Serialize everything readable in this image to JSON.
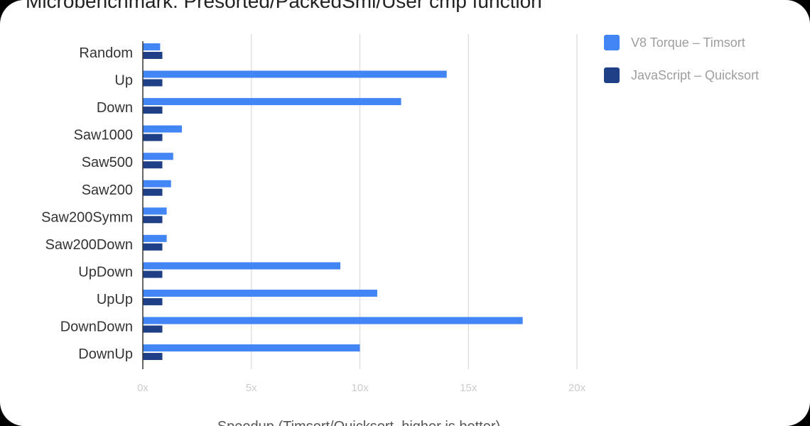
{
  "chart_data": {
    "type": "bar",
    "orientation": "horizontal",
    "title": "Microbenchmark: Presorted/PackedSmi/User cmp function",
    "xlabel": "Speedup (Timsort/Quicksort, higher is better)",
    "ylabel": "",
    "xlim": [
      0,
      20
    ],
    "xticks": [
      0,
      5,
      10,
      15,
      20
    ],
    "xtick_labels": [
      "0x",
      "5x",
      "10x",
      "15x",
      "20x"
    ],
    "grid": true,
    "legend_position": "right",
    "categories": [
      "Random",
      "Up",
      "Down",
      "Saw1000",
      "Saw500",
      "Saw200",
      "Saw200Symm",
      "Saw200Down",
      "UpDown",
      "UpUp",
      "DownDown",
      "DownUp"
    ],
    "series": [
      {
        "name": "V8 Torque – Timsort",
        "color": "#4285f4",
        "values": [
          0.8,
          14.0,
          11.9,
          1.8,
          1.4,
          1.3,
          1.1,
          1.1,
          9.1,
          10.8,
          17.5,
          10.0
        ]
      },
      {
        "name": "JavaScript – Quicksort",
        "color": "#1f3f87",
        "values": [
          0.9,
          0.9,
          0.9,
          0.9,
          0.9,
          0.9,
          0.9,
          0.9,
          0.9,
          0.9,
          0.9,
          0.9
        ]
      }
    ]
  }
}
